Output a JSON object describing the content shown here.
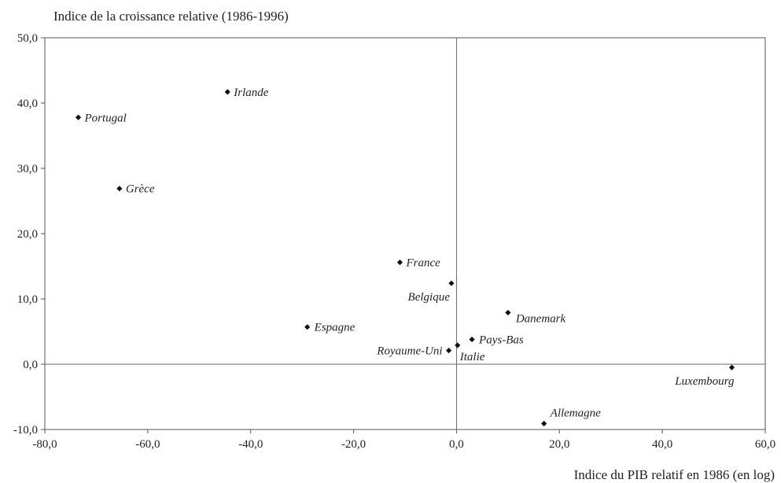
{
  "chart_data": {
    "type": "scatter",
    "title": "Indice de la croissance relative (1986-1996)",
    "xlabel": "Indice du PIB relatif en 1986 (en log)",
    "ylabel": "",
    "xlim": [
      -80,
      60
    ],
    "ylim": [
      -10,
      50
    ],
    "x_ticks": [
      "-80,0",
      "-60,0",
      "-40,0",
      "-20,0",
      "0,0",
      "20,0",
      "40,0",
      "60,0"
    ],
    "y_ticks": [
      "50,0",
      "40,0",
      "30,0",
      "20,0",
      "10,0",
      "0,0",
      "-10,0"
    ],
    "grid": false,
    "reference_lines": {
      "x": 0,
      "y": 0
    },
    "marker_color": "#111111",
    "points": [
      {
        "label": "Irlande",
        "x": -44.5,
        "y": 41.7
      },
      {
        "label": "Portugal",
        "x": -73.5,
        "y": 37.8
      },
      {
        "label": "Grèce",
        "x": -65.5,
        "y": 26.9
      },
      {
        "label": "France",
        "x": -11.0,
        "y": 15.6
      },
      {
        "label": "Belgique",
        "x": -1.0,
        "y": 12.4
      },
      {
        "label": "Danemark",
        "x": 10.0,
        "y": 7.9
      },
      {
        "label": "Espagne",
        "x": -29.0,
        "y": 5.7
      },
      {
        "label": "Pays-Bas",
        "x": 3.0,
        "y": 3.8
      },
      {
        "label": "Italie",
        "x": 0.2,
        "y": 2.9
      },
      {
        "label": "Royaume-Uni",
        "x": -1.5,
        "y": 2.1
      },
      {
        "label": "Luxembourg",
        "x": 53.5,
        "y": -0.5
      },
      {
        "label": "Allemagne",
        "x": 17.0,
        "y": -9.1
      }
    ]
  }
}
